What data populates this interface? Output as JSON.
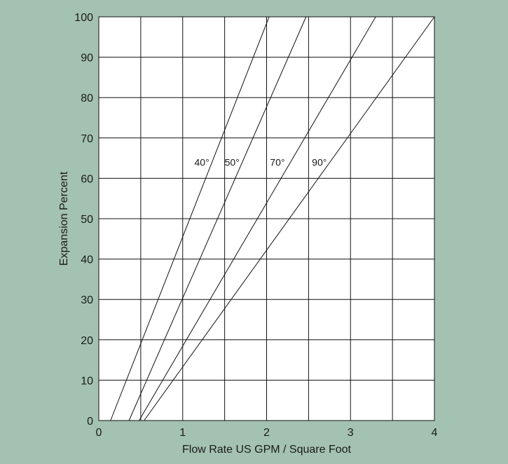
{
  "chart_data": {
    "type": "line",
    "title": "",
    "xlabel": "Flow Rate US GPM / Square Foot",
    "ylabel": "Expansion Percent",
    "xlim": [
      0,
      4
    ],
    "ylim": [
      0,
      100
    ],
    "x_ticks": [
      0,
      1,
      2,
      3,
      4
    ],
    "y_ticks": [
      0,
      10,
      20,
      30,
      40,
      50,
      60,
      70,
      80,
      90,
      100
    ],
    "x_minor_grid": [
      0.5,
      1.5,
      2.5,
      3.5
    ],
    "grid": true,
    "legend": "none",
    "series": [
      {
        "name": "40°",
        "x": [
          0.14,
          2.03
        ],
        "y": [
          0,
          100
        ],
        "label_at": [
          1.14,
          64
        ]
      },
      {
        "name": "50°",
        "x": [
          0.36,
          2.47
        ],
        "y": [
          0,
          100
        ],
        "label_at": [
          1.5,
          64
        ]
      },
      {
        "name": "70°",
        "x": [
          0.48,
          3.3
        ],
        "y": [
          0,
          100
        ],
        "label_at": [
          2.04,
          64
        ]
      },
      {
        "name": "90°",
        "x": [
          0.54,
          4.0
        ],
        "y": [
          0,
          100
        ],
        "label_at": [
          2.54,
          64
        ]
      }
    ]
  },
  "colors": {
    "background": "#a4c2b1",
    "plot_background": "#ffffff",
    "lines": "#111111"
  }
}
